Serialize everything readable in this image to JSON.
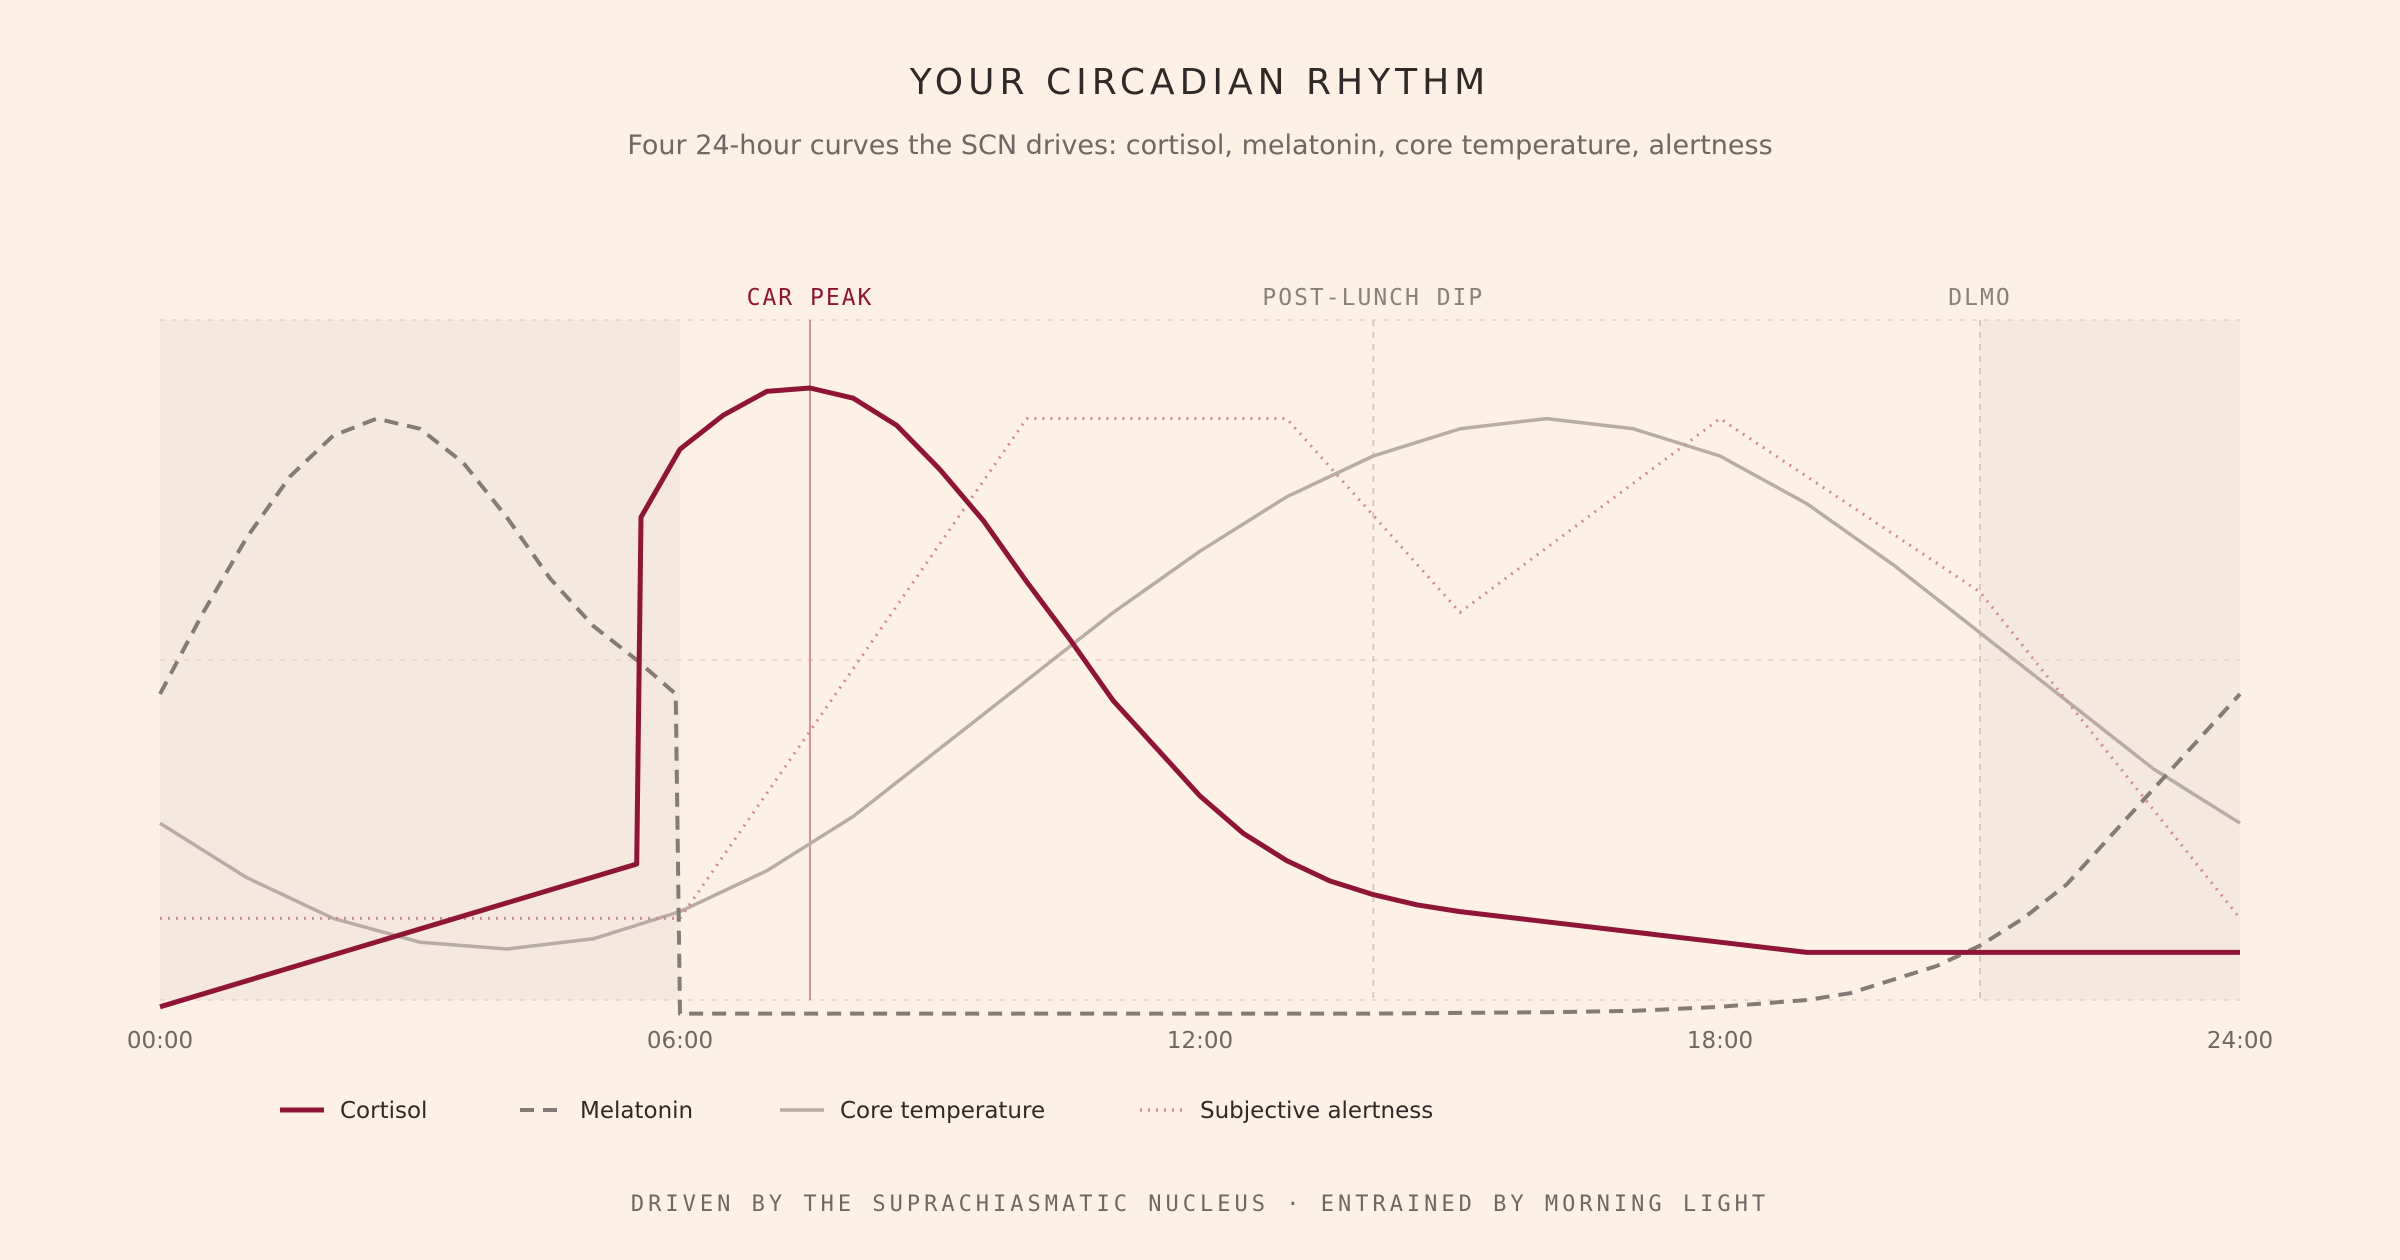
{
  "title": "YOUR CIRCADIAN RHYTHM",
  "subtitle": "Four 24-hour curves the SCN drives: cortisol, melatonin, core temperature, alertness",
  "footer": "DRIVEN BY THE SUPRACHIASMATIC NUCLEUS · ENTRAINED BY MORNING LIGHT",
  "colors": {
    "background": "#fdf1e6",
    "night_shade": "#f5e8de",
    "cortisol": "#8f1537",
    "melatonin": "#857a74",
    "temperature": "#b8aca5",
    "alertness": "#cf8a95",
    "car_peak_marker": "#d98f9d",
    "grid": "#ecd8cd"
  },
  "chart_data": {
    "type": "line",
    "title": "YOUR CIRCADIAN RHYTHM",
    "xlabel": "",
    "ylabel": "",
    "xlim": [
      0,
      24
    ],
    "ylim": [
      0,
      1
    ],
    "grid": true,
    "legend_position": "bottom-left",
    "x_ticks": [
      "00:00",
      "06:00",
      "12:00",
      "18:00",
      "24:00"
    ],
    "x_tick_values": [
      0,
      6,
      12,
      18,
      24
    ],
    "night_shading": [
      [
        0,
        6
      ],
      [
        21,
        24
      ]
    ],
    "annotations": [
      {
        "label": "CAR PEAK",
        "x": 7.5,
        "style": "accent"
      },
      {
        "label": "POST-LUNCH DIP",
        "x": 14,
        "style": "muted"
      },
      {
        "label": "DLMO",
        "x": 21,
        "style": "muted"
      }
    ],
    "series": [
      {
        "name": "Cortisol",
        "style": "solid-bold",
        "x": [
          0,
          5.5,
          5.55,
          6,
          6.5,
          7,
          7.5,
          8,
          8.5,
          9,
          9.5,
          10,
          10.5,
          11,
          11.5,
          12,
          12.5,
          13,
          13.5,
          14,
          14.5,
          15,
          16,
          17,
          18,
          19,
          20,
          21,
          22,
          23,
          24
        ],
        "values": [
          -0.01,
          0.2,
          0.71,
          0.81,
          0.86,
          0.895,
          0.9,
          0.885,
          0.845,
          0.78,
          0.705,
          0.615,
          0.53,
          0.44,
          0.37,
          0.3,
          0.245,
          0.205,
          0.175,
          0.155,
          0.14,
          0.13,
          0.115,
          0.1,
          0.085,
          0.07,
          0.07,
          0.07,
          0.07,
          0.07,
          0.07
        ]
      },
      {
        "name": "Melatonin",
        "style": "dashed",
        "x": [
          0,
          0.5,
          1,
          1.5,
          2,
          2.5,
          3,
          3.5,
          4,
          4.5,
          5,
          5.5,
          5.95,
          6,
          7,
          9,
          12,
          14,
          15,
          16,
          17,
          18,
          19,
          19.5,
          20,
          20.5,
          21,
          21.5,
          22,
          22.5,
          23,
          23.5,
          24
        ],
        "values": [
          0.45,
          0.57,
          0.68,
          0.77,
          0.83,
          0.855,
          0.84,
          0.79,
          0.71,
          0.62,
          0.55,
          0.5,
          0.45,
          -0.02,
          -0.02,
          -0.02,
          -0.02,
          -0.02,
          -0.019,
          -0.018,
          -0.016,
          -0.01,
          0.0,
          0.01,
          0.03,
          0.05,
          0.08,
          0.12,
          0.17,
          0.24,
          0.31,
          0.38,
          0.45
        ]
      },
      {
        "name": "Core temperature",
        "style": "solid",
        "x": [
          0,
          1,
          2,
          3,
          4,
          5,
          6,
          7,
          8,
          9,
          10,
          11,
          12,
          13,
          14,
          15,
          16,
          17,
          18,
          19,
          20,
          21,
          22,
          23,
          24
        ],
        "values": [
          0.26,
          0.18,
          0.12,
          0.085,
          0.075,
          0.09,
          0.13,
          0.19,
          0.27,
          0.37,
          0.47,
          0.57,
          0.66,
          0.74,
          0.8,
          0.84,
          0.855,
          0.84,
          0.8,
          0.73,
          0.64,
          0.54,
          0.44,
          0.34,
          0.26
        ]
      },
      {
        "name": "Subjective alertness",
        "style": "dotted",
        "x": [
          0,
          6,
          10,
          13,
          15,
          18,
          21,
          24
        ],
        "values": [
          0.12,
          0.12,
          0.855,
          0.855,
          0.57,
          0.855,
          0.6,
          0.12
        ]
      }
    ]
  }
}
